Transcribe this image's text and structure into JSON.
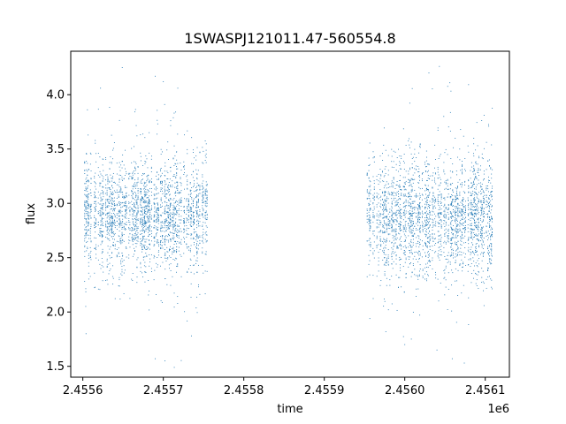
{
  "chart_data": {
    "type": "scatter",
    "title": "1SWASPJ121011.47-560554.8",
    "xlabel": "time",
    "ylabel": "flux",
    "x_offset_label": "1e6",
    "xlim": [
      2455585,
      2456130
    ],
    "ylim": [
      1.4,
      4.4
    ],
    "x_ticks": [
      2455600,
      2455700,
      2455800,
      2455900,
      2456000,
      2456100
    ],
    "x_tick_labels": [
      "2.4556",
      "2.4557",
      "2.4558",
      "2.4559",
      "2.4560",
      "2.4561"
    ],
    "y_ticks": [
      1.5,
      2.0,
      2.5,
      3.0,
      3.5,
      4.0
    ],
    "y_tick_labels": [
      "1.5",
      "2.0",
      "2.5",
      "3.0",
      "3.5",
      "4.0"
    ],
    "grid": false,
    "point_color": "#1f77b4",
    "series": [
      {
        "segments": [
          {
            "start": 2455602,
            "end": 2455754,
            "center": 2.9,
            "spread": 0.3
          },
          {
            "start": 2455953,
            "end": 2456108,
            "center": 2.88,
            "spread": 0.32
          }
        ],
        "points_per_segment": 2600,
        "outliers": [
          [
            2455622,
            4.06
          ],
          [
            2455649,
            4.25
          ],
          [
            2455690,
            4.17
          ],
          [
            2455700,
            4.12
          ],
          [
            2455702,
            1.55
          ],
          [
            2455718,
            4.06
          ],
          [
            2455735,
            1.78
          ],
          [
            2455604,
            1.8
          ],
          [
            2455690,
            1.57
          ],
          [
            2456030,
            4.2
          ],
          [
            2456043,
            4.26
          ],
          [
            2456056,
            4.11
          ],
          [
            2456040,
            1.65
          ],
          [
            2456059,
            1.57
          ],
          [
            2456000,
            1.7
          ],
          [
            2456074,
            1.53
          ]
        ]
      }
    ]
  }
}
